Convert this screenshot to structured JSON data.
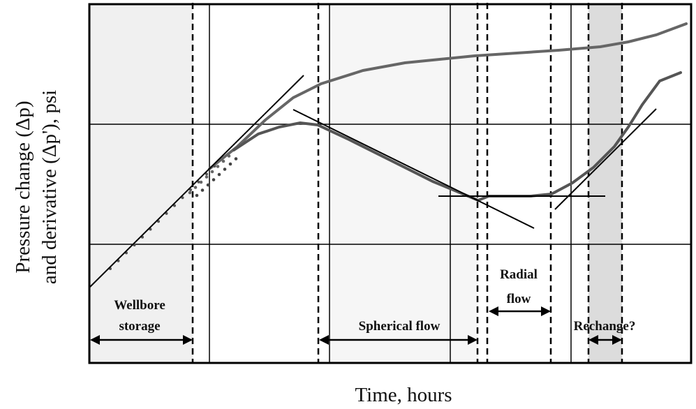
{
  "chart_data": {
    "type": "line",
    "scale": "log-log",
    "xlabel": "Time, hours",
    "ylabel_line1": "Pressure change  (Δp)",
    "ylabel_line2": "and derivative (Δp'), psi",
    "grid": true,
    "tick_labels": "none",
    "series_colors": {
      "pressure": "#666666",
      "derivative": "#555555",
      "trend_lines": "#000000"
    },
    "regions": [
      {
        "label_line1": "Wellbore",
        "label_line2": "storage",
        "shading": "#f0f0f0"
      },
      {
        "label_line1": "Spherical flow",
        "label_line2": "",
        "shading": "#f6f6f6"
      },
      {
        "label_line1": "Radial",
        "label_line2": "flow",
        "shading": "#ffffff"
      },
      {
        "label_line1": "Rechange?",
        "label_line2": "",
        "shading": "#dcdcdc"
      }
    ]
  }
}
